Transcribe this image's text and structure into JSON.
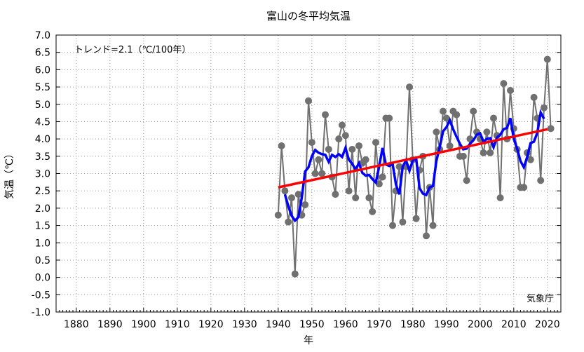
{
  "chart_data": {
    "type": "line",
    "title": "富山の冬平均気温",
    "xlabel": "年",
    "ylabel": "気温（℃）",
    "xlim": [
      1874,
      2024
    ],
    "ylim": [
      -1.0,
      7.0
    ],
    "xticks": [
      1880,
      1890,
      1900,
      1910,
      1920,
      1930,
      1940,
      1950,
      1960,
      1970,
      1980,
      1990,
      2000,
      2010,
      2020
    ],
    "yticks": [
      "-1.0",
      "-0.5",
      "0.0",
      "0.5",
      "1.0",
      "1.5",
      "2.0",
      "2.5",
      "3.0",
      "3.5",
      "4.0",
      "4.5",
      "5.0",
      "5.5",
      "6.0",
      "6.5",
      "7.0"
    ],
    "grid": true,
    "annotation_trend": "トレンド=2.1（℃/100年）",
    "annotation_source": "気象庁",
    "colors": {
      "annual": "#707070",
      "running_mean": "#0000ff",
      "trend": "#ff0000"
    },
    "x": [
      1940,
      1941,
      1942,
      1943,
      1944,
      1945,
      1946,
      1947,
      1948,
      1949,
      1950,
      1951,
      1952,
      1953,
      1954,
      1955,
      1956,
      1957,
      1958,
      1959,
      1960,
      1961,
      1962,
      1963,
      1964,
      1965,
      1966,
      1967,
      1968,
      1969,
      1970,
      1971,
      1972,
      1973,
      1974,
      1975,
      1976,
      1977,
      1978,
      1979,
      1980,
      1981,
      1982,
      1983,
      1984,
      1985,
      1986,
      1987,
      1988,
      1989,
      1990,
      1991,
      1992,
      1993,
      1994,
      1995,
      1996,
      1997,
      1998,
      1999,
      2000,
      2001,
      2002,
      2003,
      2004,
      2005,
      2006,
      2007,
      2008,
      2009,
      2010,
      2011,
      2012,
      2013,
      2014,
      2015,
      2016,
      2017,
      2018,
      2019,
      2020,
      2021
    ],
    "series": [
      {
        "values": [
          1.8,
          3.8,
          2.5,
          1.6,
          2.3,
          0.1,
          2.4,
          1.8,
          2.1,
          5.1,
          3.9,
          3.0,
          3.4,
          3.0,
          4.7,
          3.7,
          2.9,
          2.4,
          4.0,
          4.4,
          4.1,
          2.5,
          3.7,
          2.3,
          3.8,
          3.3,
          3.4,
          2.3,
          1.9,
          3.9,
          2.7,
          2.9,
          4.6,
          4.6,
          1.5,
          2.5,
          3.2,
          1.6,
          3.2,
          5.5,
          3.4,
          1.7,
          3.1,
          3.5,
          1.2,
          2.6,
          1.5,
          4.2,
          3.7,
          4.8,
          4.6,
          3.8,
          4.8,
          4.7,
          3.5,
          3.5,
          2.8,
          4.0,
          4.8,
          4.2,
          4.0,
          3.6,
          4.2,
          3.6,
          4.6,
          4.1,
          2.3,
          5.6,
          4.0,
          5.4,
          4.3,
          3.7,
          2.6,
          2.6,
          3.6,
          3.4,
          5.2,
          4.6,
          2.8,
          4.9,
          6.3,
          4.3
        ]
      }
    ],
    "running_mean_window": 5,
    "trend": {
      "x": [
        1940,
        2020
      ],
      "y": [
        2.6,
        4.28
      ]
    }
  }
}
